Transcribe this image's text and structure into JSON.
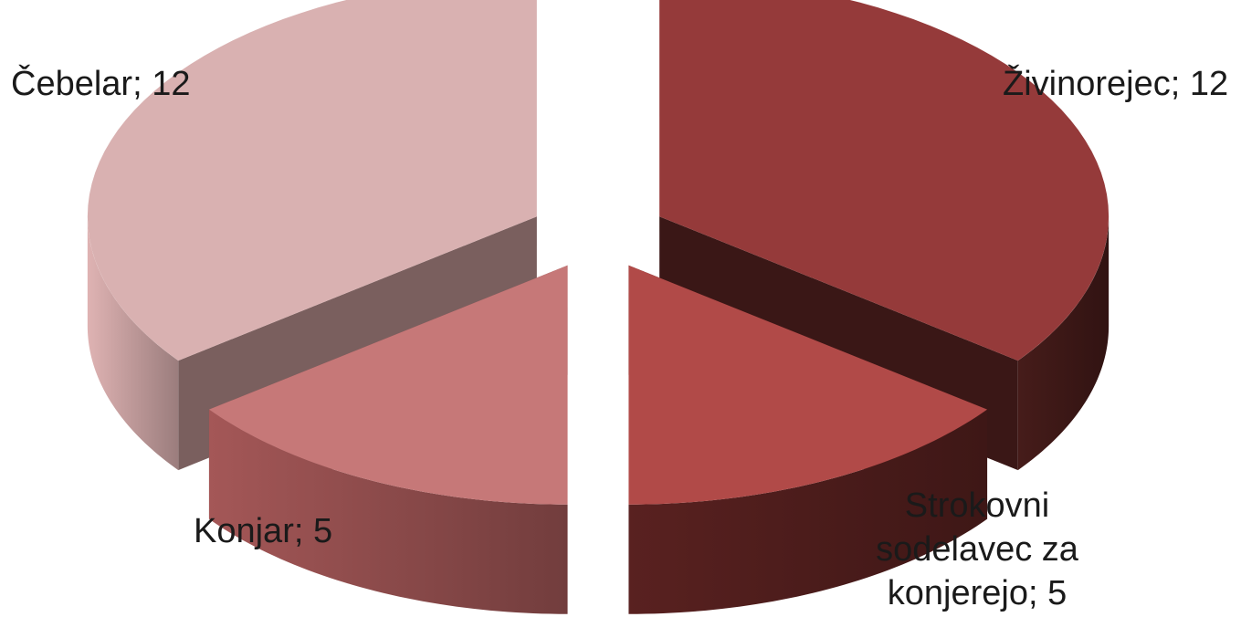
{
  "chart_data": {
    "type": "pie",
    "style": "3d-exploded",
    "title": "",
    "categories": [
      "Živinorejec",
      "Strokovni sodelavec za konjerejo",
      "Konjar",
      "Čebelar"
    ],
    "values": [
      12,
      5,
      5,
      12
    ],
    "labels": [
      [
        "Živinorejec; 12"
      ],
      [
        "Strokovni",
        "sodelavec za",
        "konjerejo; 5"
      ],
      [
        "Konjar; 5"
      ],
      [
        "Čebelar; 12"
      ]
    ],
    "colors": {
      "top": [
        "#953a3a",
        "#b14a48",
        "#c67878",
        "#d9b1b1"
      ],
      "side": [
        "#3d1817",
        "#4d1d1c",
        "#8f4c4c",
        "#c29c9c"
      ],
      "cut": [
        "#3a1716",
        "#4a1c1b",
        "#7a4a4a",
        "#7a5f5e"
      ]
    },
    "legend": "none",
    "grid": false
  }
}
